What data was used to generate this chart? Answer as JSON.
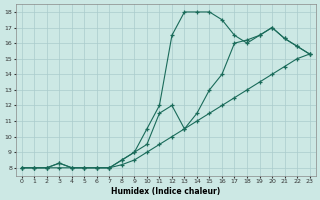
{
  "xlabel": "Humidex (Indice chaleur)",
  "background_color": "#cce8e4",
  "grid_color": "#aacccc",
  "line_color": "#1a6b5a",
  "xlim": [
    -0.5,
    23.5
  ],
  "ylim": [
    7.5,
    18.5
  ],
  "xticks": [
    0,
    1,
    2,
    3,
    4,
    5,
    6,
    7,
    8,
    9,
    10,
    11,
    12,
    13,
    14,
    15,
    16,
    17,
    18,
    19,
    20,
    21,
    22,
    23
  ],
  "yticks": [
    8,
    9,
    10,
    11,
    12,
    13,
    14,
    15,
    16,
    17,
    18
  ],
  "line1_x": [
    0,
    1,
    2,
    3,
    4,
    5,
    6,
    7,
    8,
    9,
    10,
    11,
    12,
    13,
    14,
    15,
    16,
    17,
    18,
    19,
    20,
    21,
    22,
    23
  ],
  "line1_y": [
    8,
    8,
    8,
    8.3,
    8,
    8,
    8,
    8,
    8.5,
    9,
    10.5,
    12,
    16.5,
    18,
    18,
    18,
    17.5,
    16.5,
    16,
    16.5,
    17,
    16.3,
    15.8,
    15.3
  ],
  "line2_x": [
    0,
    1,
    2,
    3,
    4,
    5,
    6,
    7,
    8,
    9,
    10,
    11,
    12,
    13,
    14,
    15,
    16,
    17,
    18,
    19,
    20,
    21,
    22,
    23
  ],
  "line2_y": [
    8,
    8,
    8,
    8.3,
    8,
    8,
    8,
    8,
    8.5,
    9,
    9.5,
    11.5,
    12,
    10.5,
    11.5,
    13,
    14,
    16,
    16.2,
    16.5,
    17,
    16.3,
    15.8,
    15.3
  ],
  "line3_x": [
    0,
    1,
    2,
    3,
    4,
    5,
    6,
    7,
    8,
    9,
    10,
    11,
    12,
    13,
    14,
    15,
    16,
    17,
    18,
    19,
    20,
    21,
    22,
    23
  ],
  "line3_y": [
    8,
    8,
    8,
    8,
    8,
    8,
    8,
    8,
    8.2,
    8.5,
    9,
    9.5,
    10,
    10.5,
    11,
    11.5,
    12,
    12.5,
    13,
    13.5,
    14,
    14.5,
    15,
    15.3
  ]
}
